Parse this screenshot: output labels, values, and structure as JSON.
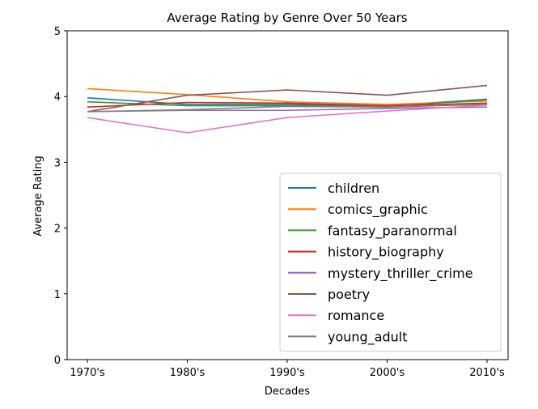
{
  "chart_data": {
    "type": "line",
    "title": "Average Rating by Genre Over 50 Years",
    "xlabel": "Decades",
    "ylabel": "Average Rating",
    "categories": [
      "1970's",
      "1980's",
      "1990's",
      "2000's",
      "2010's"
    ],
    "ylim": [
      0,
      5
    ],
    "yticks": [
      "0",
      "1",
      "2",
      "3",
      "4",
      "5"
    ],
    "grid": false,
    "legend_position": "bottom-right",
    "series": [
      {
        "name": "children",
        "color": "#1f77b4",
        "values": [
          3.98,
          3.88,
          3.88,
          3.86,
          3.96
        ]
      },
      {
        "name": "comics_graphic",
        "color": "#ff7f0e",
        "values": [
          4.12,
          4.03,
          3.92,
          3.88,
          3.93
        ]
      },
      {
        "name": "fantasy_paranormal",
        "color": "#2ca02c",
        "values": [
          3.92,
          3.86,
          3.86,
          3.85,
          3.95
        ]
      },
      {
        "name": "history_biography",
        "color": "#d62728",
        "values": [
          3.84,
          3.91,
          3.9,
          3.86,
          3.9
        ]
      },
      {
        "name": "mystery_thriller_crime",
        "color": "#9467bd",
        "values": [
          3.77,
          3.79,
          3.79,
          3.82,
          3.84
        ]
      },
      {
        "name": "poetry",
        "color": "#8c564b",
        "values": [
          3.77,
          4.02,
          4.1,
          4.02,
          4.17
        ]
      },
      {
        "name": "romance",
        "color": "#e377c2",
        "values": [
          3.68,
          3.45,
          3.68,
          3.78,
          3.87
        ]
      },
      {
        "name": "young_adult",
        "color": "#7f7f7f",
        "values": [
          3.77,
          3.8,
          3.85,
          3.84,
          3.88
        ]
      }
    ]
  }
}
